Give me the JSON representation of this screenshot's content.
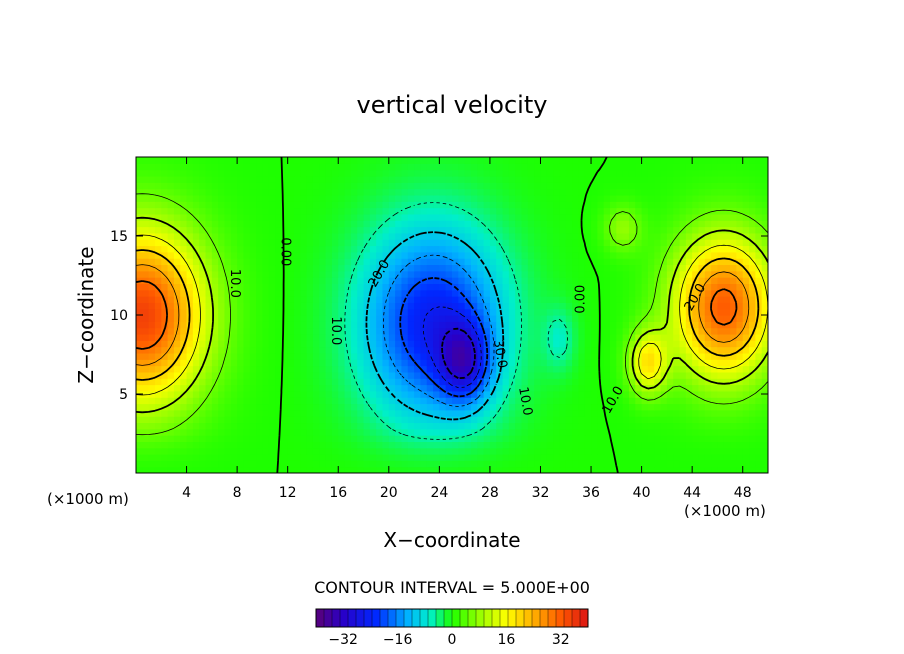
{
  "chart_data": {
    "type": "heatmap",
    "title": "vertical velocity",
    "xlabel": "X−coordinate",
    "ylabel": "Z−coordinate",
    "x_unit_left": "(×1000 m)",
    "x_unit_right": "(×1000 m)",
    "xlim": [
      0,
      50
    ],
    "ylim": [
      0,
      20
    ],
    "x_ticks": [
      4,
      8,
      12,
      16,
      20,
      24,
      28,
      32,
      36,
      40,
      44,
      48
    ],
    "y_ticks": [
      5,
      10,
      15
    ],
    "contour_interval_text": "CONTOUR INTERVAL = 5.000E+00",
    "contour_interval": 5,
    "color_range": [
      -40,
      40
    ],
    "colorbar_ticks": [
      -32,
      -16,
      0,
      16,
      32
    ],
    "contour_labels": [
      {
        "text": "10.0",
        "x": 7.5,
        "z": 12.0,
        "angle": 90
      },
      {
        "text": "0.00",
        "x": 11.5,
        "z": 14.0,
        "angle": 90
      },
      {
        "text": "10.0",
        "x": 15.5,
        "z": 9.0,
        "angle": 90
      },
      {
        "text": "20.0",
        "x": 19.5,
        "z": 12.5,
        "angle": -60
      },
      {
        "text": "30.0",
        "x": 28.5,
        "z": 7.5,
        "angle": 80
      },
      {
        "text": "10.0",
        "x": 30.5,
        "z": 4.5,
        "angle": 80
      },
      {
        "text": "0.00",
        "x": 35.5,
        "z": 11.0,
        "angle": -90
      },
      {
        "text": "10.0",
        "x": 38.0,
        "z": 4.5,
        "angle": -60
      },
      {
        "text": "20.0",
        "x": 44.5,
        "z": 11.0,
        "angle": -60
      }
    ],
    "field_features": [
      {
        "name": "updraft-west",
        "x": 0.5,
        "z": 10.0,
        "amplitude": 35,
        "sx": 5.0,
        "sz": 5.5
      },
      {
        "name": "downdraft-broad",
        "x": 23.5,
        "z": 9.5,
        "amplitude": -25,
        "sx": 5.5,
        "sz": 6.0
      },
      {
        "name": "downdraft-core",
        "x": 26.0,
        "z": 7.0,
        "amplitude": -18,
        "sx": 2.0,
        "sz": 2.5
      },
      {
        "name": "updraft-east",
        "x": 46.5,
        "z": 10.5,
        "amplitude": 32,
        "sx": 4.0,
        "sz": 4.5
      },
      {
        "name": "updraft-east-low",
        "x": 40.5,
        "z": 7.0,
        "amplitude": 18,
        "sx": 1.5,
        "sz": 2.0
      },
      {
        "name": "updraft-east-mid",
        "x": 38.5,
        "z": 15.5,
        "amplitude": 8,
        "sx": 1.5,
        "sz": 1.5
      },
      {
        "name": "downdraft-east-small",
        "x": 33.5,
        "z": 8.5,
        "amplitude": -6,
        "sx": 1.2,
        "sz": 2.0
      }
    ]
  }
}
